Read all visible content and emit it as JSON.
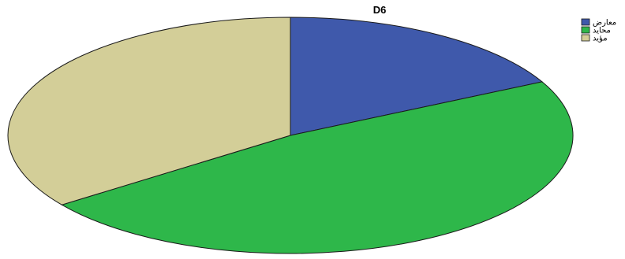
{
  "chart_data": {
    "type": "pie",
    "title": "D6",
    "legend_position": "top-right",
    "slices": [
      {
        "label": "معارض",
        "value": 17.5,
        "color": "#3F59AB"
      },
      {
        "label": "محايد",
        "value": 47.5,
        "color": "#2EB74A"
      },
      {
        "label": "مؤيد",
        "value": 35.0,
        "color": "#D3CE98"
      }
    ]
  }
}
